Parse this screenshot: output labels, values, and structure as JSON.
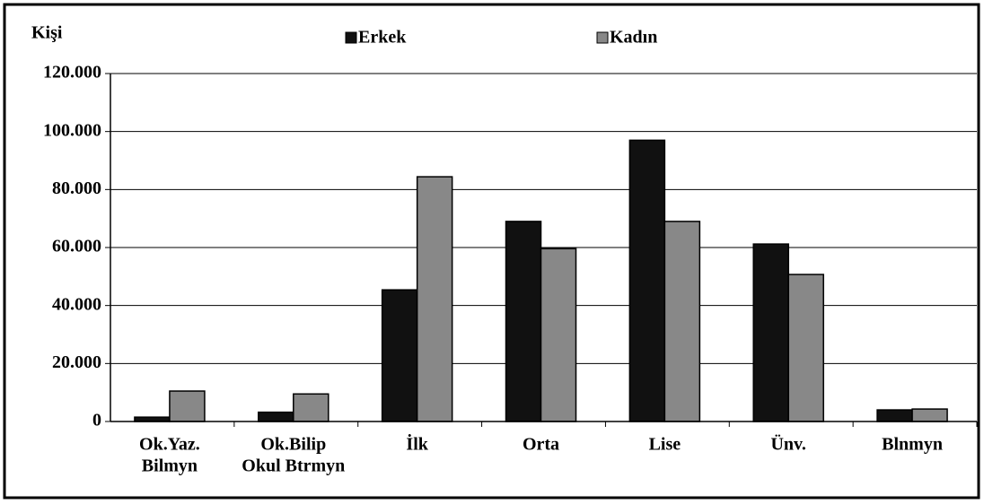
{
  "chart_data": {
    "type": "bar",
    "y_label": "Kişi",
    "categories": [
      [
        "Ok.Yaz.",
        "Bilmyn"
      ],
      [
        "Ok.Bilip",
        "Okul Btrmyn"
      ],
      [
        "İlk"
      ],
      [
        "Orta"
      ],
      [
        "Lise"
      ],
      [
        "Ünv."
      ],
      [
        "Blnmyn"
      ]
    ],
    "series": [
      {
        "name": "Erkek",
        "color": "#111111",
        "values": [
          1500,
          3200,
          45400,
          69000,
          97000,
          61200,
          4000
        ]
      },
      {
        "name": "Kadın",
        "color": "#888888",
        "values": [
          10500,
          9500,
          84400,
          59600,
          69000,
          50700,
          4300
        ]
      }
    ],
    "ylim": [
      0,
      120000
    ],
    "yticks": [
      0,
      {
        "value": 20000,
        "label": "20.000"
      },
      {
        "value": 40000,
        "label": "40.000"
      },
      {
        "value": 60000,
        "label": "60.000"
      },
      {
        "value": 80000,
        "label": "80.000"
      },
      {
        "value": 100000,
        "label": "100.000"
      },
      {
        "value": 120000,
        "label": "120.000"
      }
    ],
    "grid": true,
    "legend": "top"
  }
}
